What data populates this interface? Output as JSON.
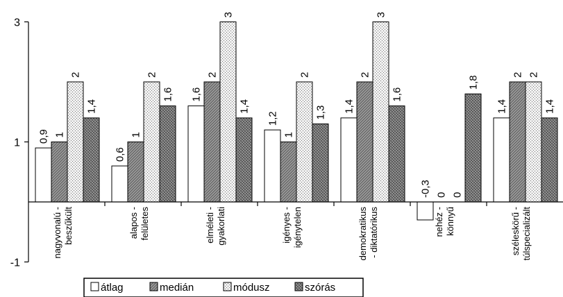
{
  "chart_data": {
    "type": "bar",
    "categories": [
      [
        "nagyvonalú -",
        "beszűkült"
      ],
      [
        "alapos -",
        "felületes"
      ],
      [
        "elméleti -",
        "gyakorlati"
      ],
      [
        "igényes -",
        "igénytelen"
      ],
      [
        "demokratikus",
        "- diktatórikus"
      ],
      [
        "nehéz -",
        "könnyű"
      ],
      [
        "széleskörű -",
        "túlspecializált"
      ]
    ],
    "series": [
      {
        "name": "átlag",
        "values": [
          0.9,
          0.6,
          1.6,
          1.2,
          1.4,
          -0.3,
          1.4
        ],
        "labels": [
          "0,9",
          "0,6",
          "1,6",
          "1,2",
          "1,4",
          "-0,3",
          "1,4"
        ]
      },
      {
        "name": "medián",
        "values": [
          1,
          1,
          2,
          1,
          2,
          0,
          2
        ],
        "labels": [
          "1",
          "1",
          "2",
          "1",
          "2",
          "0",
          "2"
        ]
      },
      {
        "name": "módusz",
        "values": [
          2,
          2,
          3,
          2,
          3,
          0,
          2
        ],
        "labels": [
          "2",
          "2",
          "3",
          "2",
          "3",
          "0",
          "2"
        ]
      },
      {
        "name": "szórás",
        "values": [
          1.4,
          1.6,
          1.4,
          1.3,
          1.6,
          1.8,
          1.4
        ],
        "labels": [
          "1,4",
          "1,6",
          "1,4",
          "1,3",
          "1,6",
          "1,8",
          "1,4"
        ]
      }
    ],
    "yticks": [
      -1,
      1,
      3
    ],
    "ytick_labels": [
      "-1",
      "1",
      "3"
    ],
    "ylim": [
      -1,
      3
    ],
    "grid": false,
    "legend_position": "bottom",
    "colors": {
      "átlag": "#ffffff",
      "medián": "#a8a8a8",
      "módusz": "#e4e4e4",
      "szórás": "#8c8c8c",
      "stroke": "#000000"
    }
  }
}
